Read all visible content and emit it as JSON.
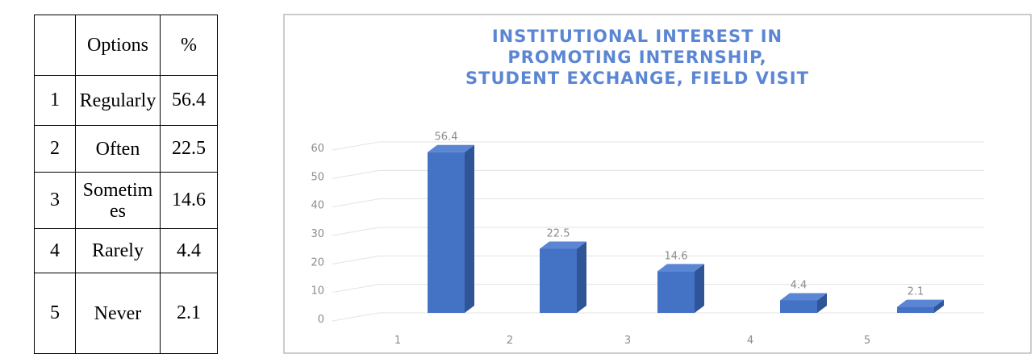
{
  "table": {
    "header": [
      "",
      "Options",
      "%"
    ],
    "rows": [
      [
        "1",
        "Regularly",
        "56.4"
      ],
      [
        "2",
        "Often",
        "22.5"
      ],
      [
        "3",
        "Sometimes",
        "14.6"
      ],
      [
        "4",
        "Rarely",
        "4.4"
      ],
      [
        "5",
        "Never",
        "2.1"
      ]
    ]
  },
  "chart_data": {
    "type": "bar3d",
    "title": [
      "INSTITUTIONAL INTEREST IN",
      "PROMOTING INTERNSHIP,",
      "STUDENT EXCHANGE, FIELD VISIT"
    ],
    "categories": [
      "1",
      "2",
      "3",
      "4",
      "5"
    ],
    "values": [
      56.4,
      22.5,
      14.6,
      4.4,
      2.1
    ],
    "color": "#4472c4",
    "ylim": [
      0,
      60
    ],
    "yticks": [
      0,
      10,
      20,
      30,
      40,
      50,
      60
    ],
    "grid": true
  }
}
